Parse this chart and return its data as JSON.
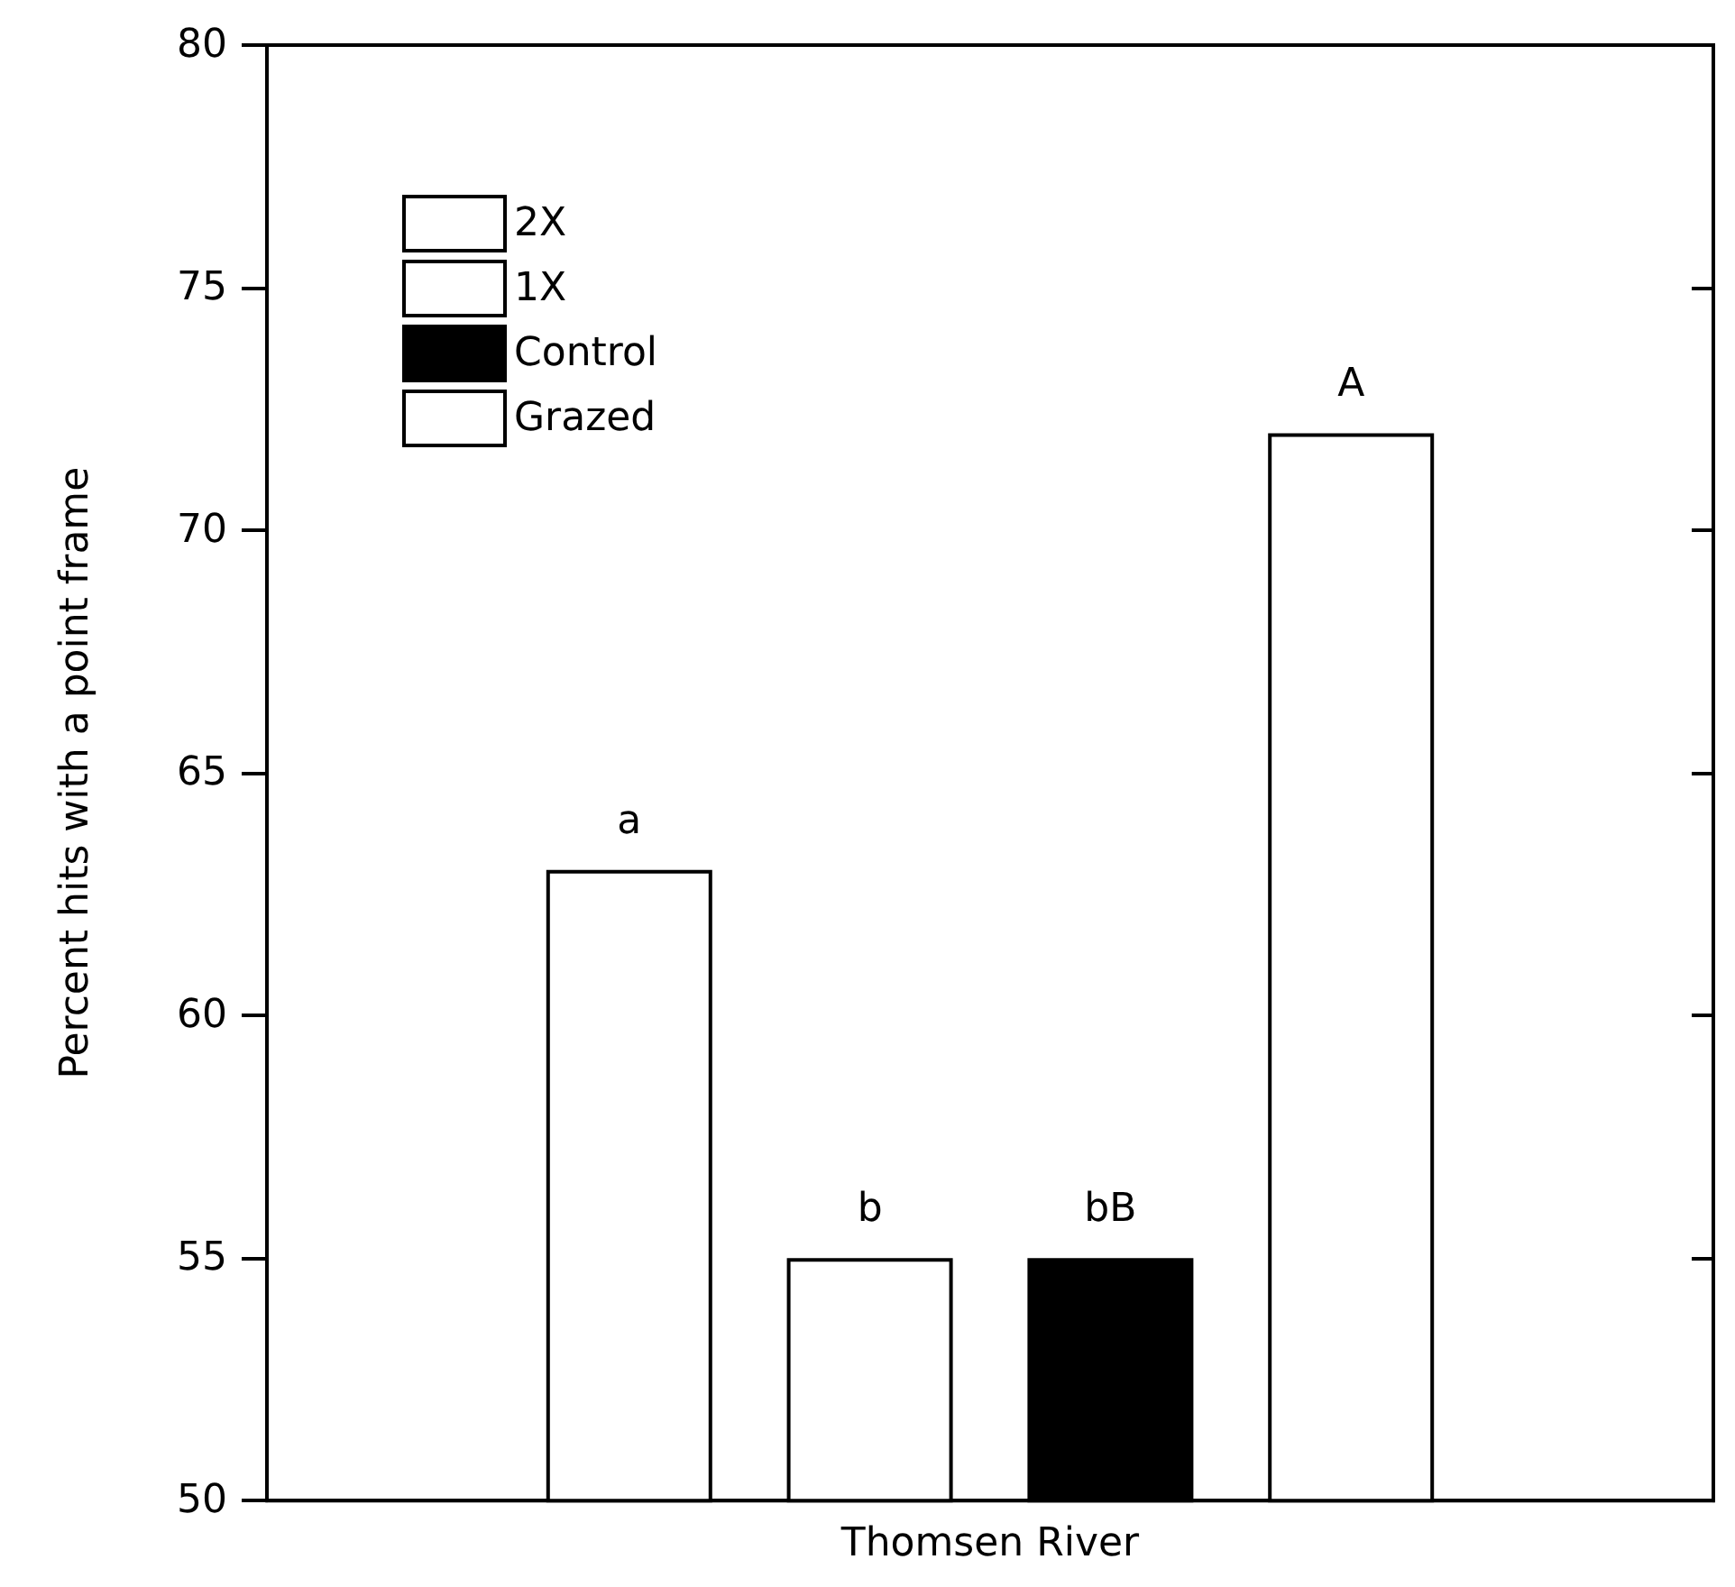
{
  "chart_data": {
    "type": "bar",
    "xlabel": "Thomsen River",
    "ylabel": "Percent hits with a point frame",
    "categories": [
      null
    ],
    "series": [
      {
        "name": "2X",
        "color": "#ffffff",
        "values": [
          63
        ],
        "value_labels": [
          "a"
        ]
      },
      {
        "name": "1X",
        "color": "#ffffff",
        "values": [
          55
        ],
        "value_labels": [
          "b"
        ]
      },
      {
        "name": "Control",
        "color": "#000000",
        "values": [
          55
        ],
        "value_labels": [
          "bB"
        ]
      },
      {
        "name": "Grazed",
        "color": "#ffffff",
        "values": [
          72
        ],
        "value_labels": [
          "A"
        ]
      }
    ],
    "ylim": [
      50,
      80
    ],
    "yticks": [
      50,
      55,
      60,
      65,
      70,
      75,
      80
    ],
    "grid": false,
    "legend": "top left"
  }
}
